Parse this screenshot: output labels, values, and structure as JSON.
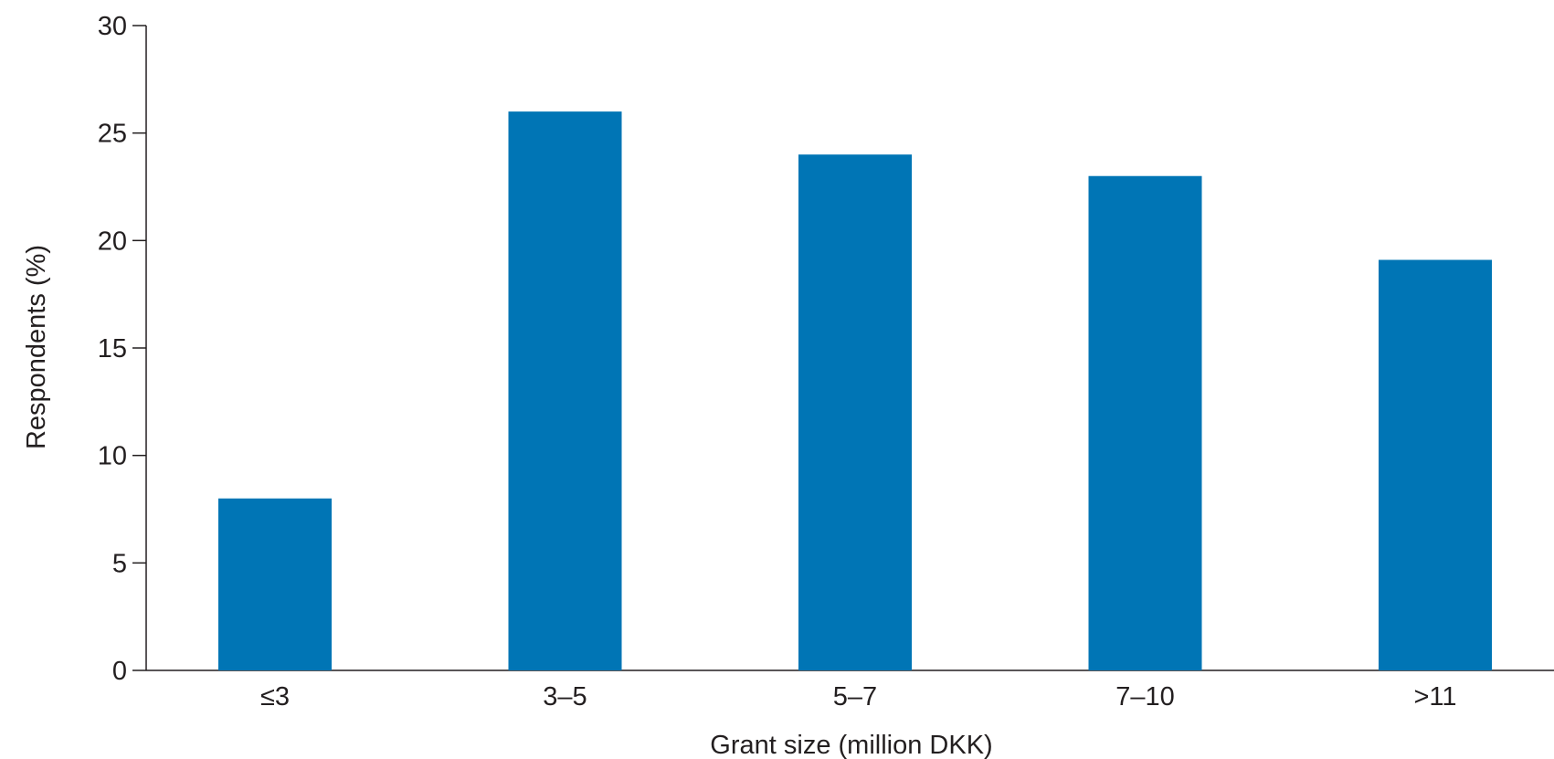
{
  "chart_data": {
    "type": "bar",
    "title": "",
    "xlabel": "Grant size (million DKK)",
    "ylabel": "Respondents (%)",
    "categories": [
      "≤3",
      "3–5",
      "5–7",
      "7–10",
      ">11"
    ],
    "values": [
      8,
      26,
      24,
      23,
      19.1
    ],
    "ylim": [
      0,
      30
    ],
    "yticks": [
      0,
      5,
      10,
      15,
      20,
      25,
      30
    ],
    "ytick_labels": [
      "0",
      "5",
      "10",
      "15",
      "20",
      "25",
      "30"
    ],
    "grid": false,
    "legend": "none",
    "bar_color": "#0075b5",
    "axis_color": "#231f20"
  }
}
